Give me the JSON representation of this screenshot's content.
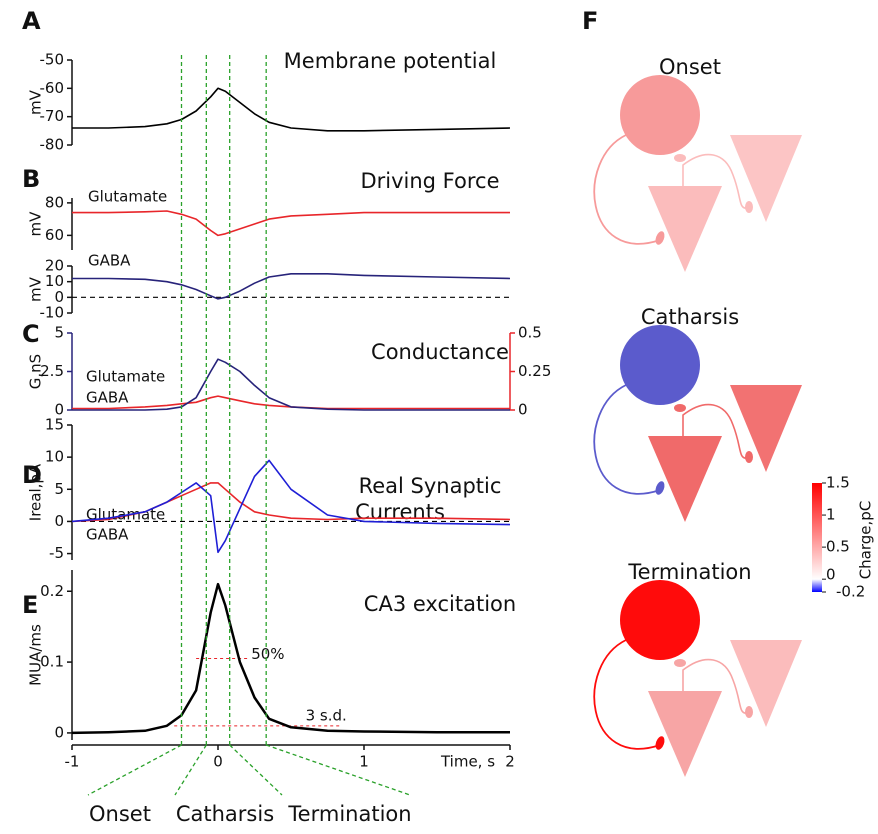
{
  "chart_data": [
    {
      "type": "line",
      "panel": "A",
      "title": "Membrane potential",
      "ylabel": "mV",
      "x": [
        -1,
        -0.75,
        -0.5,
        -0.35,
        -0.25,
        -0.15,
        -0.05,
        0,
        0.05,
        0.15,
        0.25,
        0.35,
        0.5,
        0.75,
        1,
        1.5,
        2
      ],
      "xlim": [
        -1,
        2
      ],
      "ylim": [
        -80,
        -50
      ],
      "yticks": [
        -50,
        -60,
        -70,
        -80
      ],
      "series": [
        {
          "name": "Membrane potential",
          "color": "#000000",
          "values": [
            -74,
            -74,
            -73.5,
            -72.5,
            -71,
            -68,
            -63,
            -60,
            -61,
            -65,
            -69,
            -72,
            -74,
            -75,
            -75,
            -74.5,
            -74
          ]
        }
      ]
    },
    {
      "type": "line",
      "panel": "B",
      "title": "Driving Force",
      "ylabel": "mV",
      "x": [
        -1,
        -0.75,
        -0.5,
        -0.35,
        -0.25,
        -0.15,
        -0.05,
        0,
        0.05,
        0.15,
        0.25,
        0.35,
        0.5,
        0.75,
        1,
        1.5,
        2
      ],
      "xlim": [
        -1,
        2
      ],
      "ylim": [
        51,
        83
      ],
      "yticks": [
        80,
        60
      ],
      "series": [
        {
          "name": "Glutamate",
          "color": "#e8262a",
          "values": [
            74,
            74,
            74.5,
            75,
            73,
            70,
            63,
            60,
            61,
            64,
            67,
            70,
            72,
            73,
            74,
            74,
            74
          ]
        }
      ]
    },
    {
      "type": "line",
      "ylabel": "mV",
      "zero_line": true,
      "x": [
        -1,
        -0.75,
        -0.5,
        -0.35,
        -0.25,
        -0.15,
        -0.05,
        0,
        0.05,
        0.15,
        0.25,
        0.35,
        0.5,
        0.75,
        1,
        1.5,
        2
      ],
      "xlim": [
        -1,
        2
      ],
      "ylim": [
        -10,
        20
      ],
      "yticks": [
        20,
        10,
        0,
        -10
      ],
      "series": [
        {
          "name": "GABA",
          "color": "#27237a",
          "values": [
            12,
            12,
            11.5,
            10,
            8,
            5,
            1,
            -1,
            0,
            4,
            9,
            13,
            15,
            15,
            14,
            13,
            12
          ]
        }
      ]
    },
    {
      "type": "line",
      "panel": "C",
      "title": "Conductance",
      "ylabel": "G,nS",
      "x": [
        -1,
        -0.75,
        -0.5,
        -0.35,
        -0.25,
        -0.15,
        -0.05,
        0,
        0.05,
        0.15,
        0.25,
        0.35,
        0.5,
        0.75,
        1,
        1.5,
        2
      ],
      "xlim": [
        -1,
        2
      ],
      "ylim": [
        0,
        5
      ],
      "yticks": [
        0,
        2.5,
        5
      ],
      "y2lim": [
        0,
        0.5
      ],
      "y2ticks": [
        0,
        0.25,
        0.5
      ],
      "series": [
        {
          "name": "Glutamate",
          "color": "#e8262a",
          "axis": "y2",
          "values": [
            0.01,
            0.01,
            0.02,
            0.03,
            0.04,
            0.05,
            0.08,
            0.09,
            0.08,
            0.06,
            0.04,
            0.03,
            0.02,
            0.01,
            0.01,
            0.01,
            0.01
          ]
        },
        {
          "name": "GABA",
          "color": "#27237a",
          "values": [
            0,
            0,
            0,
            0.05,
            0.2,
            0.8,
            2.5,
            3.3,
            3.1,
            2.5,
            1.6,
            0.8,
            0.2,
            0.05,
            0,
            0,
            0
          ]
        }
      ]
    },
    {
      "type": "line",
      "panel": "D",
      "title": [
        "Real Synaptic",
        "Currents"
      ],
      "ylabel": "Ireal,pA",
      "zero_line": true,
      "x": [
        -1,
        -0.75,
        -0.5,
        -0.35,
        -0.25,
        -0.15,
        -0.05,
        0,
        0.05,
        0.15,
        0.25,
        0.35,
        0.5,
        0.75,
        1,
        1.5,
        2
      ],
      "xlim": [
        -1,
        2
      ],
      "ylim": [
        -6,
        15
      ],
      "yticks": [
        15,
        10,
        5,
        0,
        -5
      ],
      "series": [
        {
          "name": "Glutamate",
          "color": "#e8262a",
          "values": [
            0,
            0.3,
            1.5,
            3,
            4,
            5,
            6,
            6,
            5,
            3,
            1.5,
            1,
            0.5,
            0.3,
            0.5,
            0.5,
            0.3
          ]
        },
        {
          "name": "GABA",
          "color": "#1f1fd6",
          "values": [
            0,
            0.5,
            1.5,
            3,
            4.5,
            6,
            4,
            -4.8,
            -3,
            2,
            7,
            9.5,
            5,
            1,
            0,
            -0.3,
            -0.5
          ]
        }
      ]
    },
    {
      "type": "line",
      "panel": "E",
      "title": "CA3 excitation",
      "ylabel": "MUA/ms",
      "xlabel": "Time, s",
      "x": [
        -1,
        -0.75,
        -0.5,
        -0.35,
        -0.25,
        -0.15,
        -0.05,
        0,
        0.05,
        0.15,
        0.25,
        0.35,
        0.5,
        0.75,
        1,
        1.5,
        2
      ],
      "xlim": [
        -1,
        2
      ],
      "xticks": [
        -1,
        0,
        1,
        2
      ],
      "ylim": [
        -0.01,
        0.23
      ],
      "yticks": [
        0,
        0.1,
        0.2
      ],
      "annotations": [
        {
          "label": "50%",
          "y": 0.105
        },
        {
          "label": "3 s.d.",
          "y": 0.01
        }
      ],
      "series": [
        {
          "name": "CA3 excitation",
          "color": "#000000",
          "values": [
            0,
            0.001,
            0.003,
            0.01,
            0.025,
            0.06,
            0.17,
            0.21,
            0.18,
            0.1,
            0.05,
            0.02,
            0.008,
            0.003,
            0.002,
            0.001,
            0.001
          ]
        }
      ]
    }
  ],
  "phases": {
    "boundaries": [
      -0.25,
      -0.08,
      0.08,
      0.33
    ],
    "labels": [
      "Onset",
      "Catharsis",
      "Termination"
    ]
  },
  "diagram": {
    "panel": "F",
    "sections": [
      {
        "title": "Onset",
        "colors": [
          "#f79a9a",
          "#fbbcbc",
          "#fcc5c5"
        ]
      },
      {
        "title": "Catharsis",
        "colors": [
          "#5b5bcc",
          "#f06a6a",
          "#f27272"
        ]
      },
      {
        "title": "Termination",
        "colors": [
          "#ff0b0b",
          "#f7a5a5",
          "#fbbcbc"
        ]
      }
    ],
    "colorbar": {
      "label": "Charge,pC",
      "ylim": [
        -0.2,
        1.5
      ],
      "ticks": [
        1.5,
        1,
        0.5,
        0,
        -0.2
      ],
      "colors": [
        "#0000ff",
        "#ffffff",
        "#ff0000"
      ]
    }
  }
}
